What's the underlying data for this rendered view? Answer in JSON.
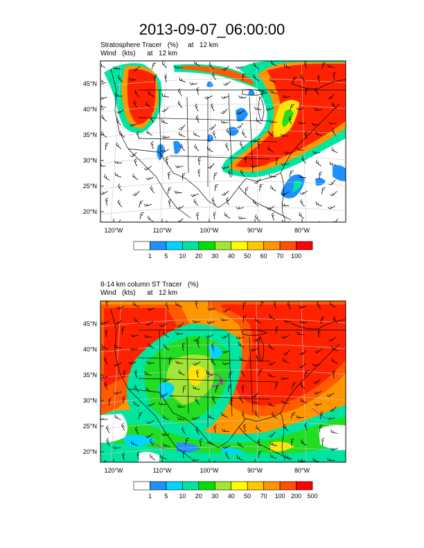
{
  "title": "2013-09-07_06:00:00",
  "panels": [
    {
      "subtitle1": "Stratosphere Tracer   (%)     at   12 km",
      "subtitle2": "Wind   (kts)      at   12 km",
      "lat_labels": [
        "45°N",
        "40°N",
        "35°N",
        "30°N",
        "25°N",
        "20°N"
      ],
      "lon_labels": [
        "120°W",
        "110°W",
        "100°W",
        "90°W",
        "80°W"
      ],
      "colorbar_labels": [
        "1",
        "5",
        "10",
        "20",
        "30",
        "40",
        "50",
        "60",
        "70",
        "100"
      ]
    },
    {
      "subtitle1": "8-14 km column ST Tracer   (%)",
      "subtitle2": "Wind   (kts)      at   12 km",
      "lat_labels": [
        "45°N",
        "40°N",
        "35°N",
        "30°N",
        "25°N",
        "20°N"
      ],
      "lon_labels": [
        "120°W",
        "110°W",
        "100°W",
        "90°W",
        "80°W"
      ],
      "colorbar_labels": [
        "1",
        "5",
        "10",
        "20",
        "30",
        "40",
        "50",
        "70",
        "100",
        "200",
        "500"
      ]
    }
  ],
  "colorbar_colors": [
    "#ffffff",
    "#1e90ff",
    "#00d4ff",
    "#00e5a0",
    "#00e000",
    "#a0e632",
    "#ffff00",
    "#ffc800",
    "#ff9600",
    "#ff5000",
    "#ff0000"
  ],
  "colors": {
    "red": "#ff2200",
    "orange_red": "#ff5a00",
    "orange": "#ff9600",
    "yellow": "#ffe600",
    "green": "#22dd22",
    "teal": "#00e5a0",
    "cyan": "#00d4ff",
    "blue": "#1e90ff"
  }
}
